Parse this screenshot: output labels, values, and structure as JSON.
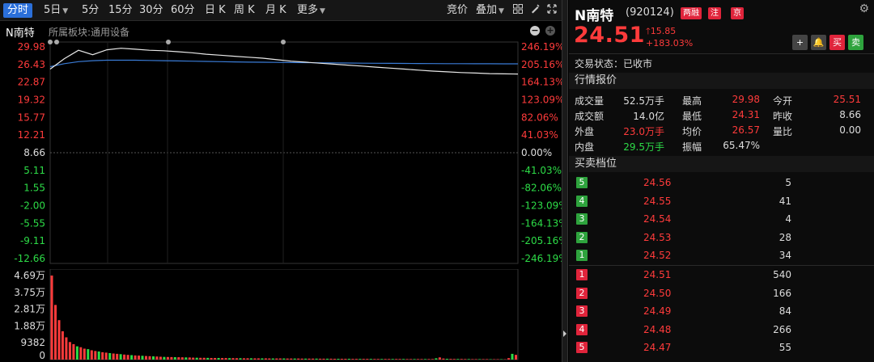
{
  "toolbar": {
    "tabs": [
      {
        "label": "分时",
        "arrow": ""
      },
      {
        "label": "5日",
        "arrow": "▼"
      },
      {
        "label": "5分",
        "arrow": ""
      },
      {
        "label": "15分",
        "arrow": ""
      },
      {
        "label": "30分",
        "arrow": ""
      },
      {
        "label": "60分",
        "arrow": ""
      },
      {
        "label": "日 K",
        "arrow": ""
      },
      {
        "label": "周 K",
        "arrow": ""
      },
      {
        "label": "月 K",
        "arrow": ""
      },
      {
        "label": "更多",
        "arrow": "▼"
      }
    ],
    "right": {
      "bid": "竞价",
      "overlay": "叠加",
      "overlay_arrow": "▼"
    },
    "icons": [
      "grid-icon",
      "brush-icon",
      "expand-icon"
    ]
  },
  "subhead": {
    "name": "N南特",
    "sector": "所属板块:通用设备"
  },
  "chart_data": {
    "type": "line",
    "left_ticks": [
      "29.98",
      "26.43",
      "22.87",
      "19.32",
      "15.77",
      "12.21",
      "8.66",
      "5.11",
      "1.55",
      "-2.00",
      "-5.55",
      "-9.11",
      "-12.66"
    ],
    "right_ticks": [
      "246.19%",
      "205.16%",
      "164.13%",
      "123.09%",
      "82.06%",
      "41.03%",
      "0.00%",
      "-41.03%",
      "-82.06%",
      "-123.09%",
      "-164.13%",
      "-205.16%",
      "-246.19%"
    ],
    "ylim": [
      -12.66,
      29.98
    ],
    "prev_close": 8.66,
    "series": [
      {
        "kind": "price",
        "values": [
          25.51,
          27.6,
          29.3,
          28.4,
          29.4,
          29.7,
          29.5,
          29.3,
          29.2,
          29.0,
          28.8,
          28.5,
          28.3,
          28.1,
          27.9,
          27.7,
          27.4,
          27.1,
          26.9,
          26.7,
          26.5,
          26.3,
          26.1,
          25.9,
          25.7,
          25.5,
          25.3,
          25.1,
          24.95,
          24.8,
          24.7,
          24.6,
          24.55,
          24.51
        ]
      },
      {
        "kind": "avg",
        "values": [
          26.0,
          26.6,
          27.0,
          27.2,
          27.3,
          27.3,
          27.3,
          27.25,
          27.2,
          27.15,
          27.1,
          27.05,
          27.0,
          26.95,
          26.9,
          26.88,
          26.85,
          26.82,
          26.8,
          26.78,
          26.75,
          26.72,
          26.7,
          26.68,
          26.66,
          26.64,
          26.62,
          26.61,
          26.6,
          26.59,
          26.58,
          26.58,
          26.57,
          26.57
        ]
      }
    ],
    "volume": {
      "ticks": [
        "4.69万",
        "3.75万",
        "2.81万",
        "1.88万",
        "9382",
        "0"
      ],
      "ymax": 46900,
      "values": [
        46900,
        30500,
        22000,
        15800,
        12400,
        9800,
        8600,
        7400,
        6900,
        6100,
        5800,
        5200,
        4800,
        4500,
        4100,
        3900,
        3600,
        3400,
        3200,
        3000,
        2800,
        2600,
        2500,
        2300,
        2200,
        2100,
        2000,
        1900,
        1800,
        1700,
        1600,
        1500,
        1450,
        1400,
        1350,
        1300,
        1250,
        1200,
        1150,
        1100,
        1050,
        1000,
        980,
        950,
        920,
        900,
        880,
        860,
        840,
        820,
        800,
        780,
        760,
        740,
        720,
        700,
        690,
        680,
        670,
        660,
        650,
        640,
        630,
        620,
        610,
        600,
        590,
        580,
        570,
        560,
        550,
        540,
        530,
        520,
        510,
        500,
        490,
        480,
        470,
        460,
        450,
        440,
        430,
        420,
        410,
        400,
        395,
        390,
        385,
        380,
        375,
        370,
        365,
        360,
        355,
        350,
        345,
        340,
        335,
        330,
        325,
        320,
        315,
        310,
        305,
        300,
        700,
        1200,
        600,
        450,
        400,
        380,
        360,
        340,
        320,
        300,
        290,
        280,
        270,
        260,
        250,
        240,
        230,
        220,
        210,
        200,
        800,
        3200,
        2600
      ]
    }
  },
  "quote": {
    "name": "N南特",
    "code": "(920124)",
    "tags": [
      "两融",
      "注",
      "京"
    ],
    "price": "24.51",
    "change": "15.85",
    "change_arrow": "🡑",
    "pct": "+183.03%",
    "buttons": [
      "+",
      "🔔",
      "买",
      "卖"
    ],
    "status_label": "交易状态：",
    "status_value": "已收市",
    "market_title": "行情报价",
    "rows": [
      [
        {
          "l": "成交量",
          "v": "52.5万手",
          "c": "white"
        },
        {
          "l": "最高",
          "v": "29.98",
          "c": "red"
        },
        {
          "l": "今开",
          "v": "25.51",
          "c": "red"
        }
      ],
      [
        {
          "l": "成交额",
          "v": "14.0亿",
          "c": "white"
        },
        {
          "l": "最低",
          "v": "24.31",
          "c": "red"
        },
        {
          "l": "昨收",
          "v": "8.66",
          "c": "white"
        }
      ],
      [
        {
          "l": "外盘",
          "v": "23.0万手",
          "c": "red"
        },
        {
          "l": "均价",
          "v": "26.57",
          "c": "red"
        },
        {
          "l": "量比",
          "v": "0.00",
          "c": "white"
        }
      ],
      [
        {
          "l": "内盘",
          "v": "29.5万手",
          "c": "green"
        },
        {
          "l": "振幅",
          "v": "65.47%",
          "c": "white"
        },
        {
          "l": "",
          "v": "",
          "c": "white"
        }
      ]
    ],
    "orderbook_title": "买卖档位",
    "asks": [
      {
        "n": "5",
        "p": "24.56",
        "v": "5"
      },
      {
        "n": "4",
        "p": "24.55",
        "v": "41"
      },
      {
        "n": "3",
        "p": "24.54",
        "v": "4"
      },
      {
        "n": "2",
        "p": "24.53",
        "v": "28"
      },
      {
        "n": "1",
        "p": "24.52",
        "v": "34"
      }
    ],
    "bids": [
      {
        "n": "1",
        "p": "24.51",
        "v": "540"
      },
      {
        "n": "2",
        "p": "24.50",
        "v": "166"
      },
      {
        "n": "3",
        "p": "24.49",
        "v": "84"
      },
      {
        "n": "4",
        "p": "24.48",
        "v": "266"
      },
      {
        "n": "5",
        "p": "24.47",
        "v": "55"
      }
    ]
  },
  "colors": {
    "up": "#ff3b3b",
    "down": "#2ddc47",
    "price_line": "#e8e8e8",
    "avg_line": "#3a7bd5",
    "accent": "#2b6fd9"
  }
}
